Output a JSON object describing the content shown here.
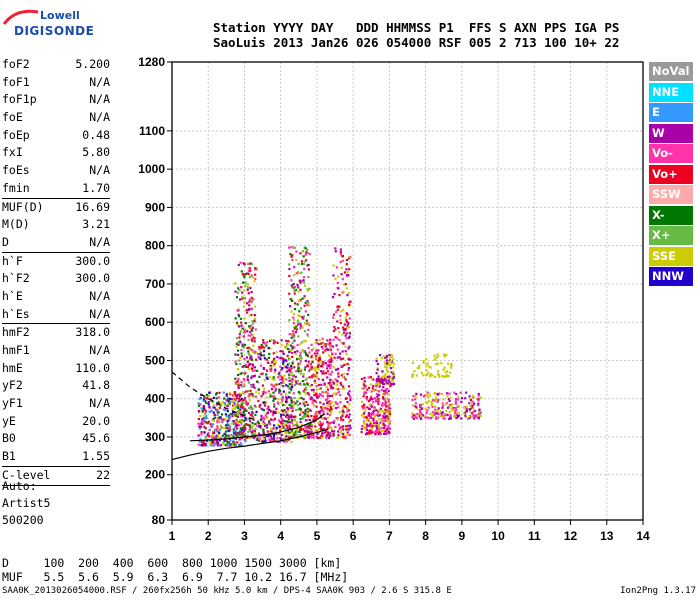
{
  "logo": {
    "brand": "Lowell",
    "product": "DIGISONDE"
  },
  "header": {
    "line1": "Station YYYY DAY   DDD HHMMSS P1  FFS S AXN PPS IGA PS",
    "line2": "SaoLuis 2013 Jan26 026 054000 RSF 005 2 713 100 10+ 22"
  },
  "params": [
    {
      "name": "foF2",
      "value": "5.200"
    },
    {
      "name": "foF1",
      "value": "N/A"
    },
    {
      "name": "foF1p",
      "value": "N/A"
    },
    {
      "name": "foE",
      "value": "N/A"
    },
    {
      "name": "foEp",
      "value": "0.48"
    },
    {
      "name": "fxI",
      "value": "5.80"
    },
    {
      "name": "foEs",
      "value": "N/A"
    },
    {
      "name": "fmin",
      "value": "1.70",
      "sep": true
    },
    {
      "name": "MUF(D)",
      "value": "16.69"
    },
    {
      "name": "M(D)",
      "value": "3.21"
    },
    {
      "name": "D",
      "value": "N/A",
      "sep": true
    },
    {
      "name": "h`F",
      "value": "300.0"
    },
    {
      "name": "h`F2",
      "value": "300.0"
    },
    {
      "name": "h`E",
      "value": "N/A"
    },
    {
      "name": "h`Es",
      "value": "N/A",
      "sep": true
    },
    {
      "name": "hmF2",
      "value": "318.0"
    },
    {
      "name": "hmF1",
      "value": "N/A"
    },
    {
      "name": "hmE",
      "value": "110.0"
    },
    {
      "name": "yF2",
      "value": "41.8"
    },
    {
      "name": "yF1",
      "value": "N/A"
    },
    {
      "name": "yE",
      "value": "20.0"
    },
    {
      "name": "B0",
      "value": "45.6"
    },
    {
      "name": "B1",
      "value": "1.55",
      "sep": true
    },
    {
      "name": "C-level",
      "value": "22",
      "sep": true
    }
  ],
  "auto": {
    "line1": "Auto:",
    "line2": "Artist5",
    "line3": "500200"
  },
  "legend": [
    {
      "label": "NoVal",
      "color": "#999999"
    },
    {
      "label": "NNE",
      "color": "#00e0ff"
    },
    {
      "label": "E",
      "color": "#3399ff"
    },
    {
      "label": "W",
      "color": "#aa00aa"
    },
    {
      "label": "Vo-",
      "color": "#ff33aa"
    },
    {
      "label": "Vo+",
      "color": "#ee0022"
    },
    {
      "label": "SSW",
      "color": "#ffaaaa"
    },
    {
      "label": "X-",
      "color": "#007700"
    },
    {
      "label": "X+",
      "color": "#66bb44"
    },
    {
      "label": "SSE",
      "color": "#cccc00"
    },
    {
      "label": "NNW",
      "color": "#2200cc"
    }
  ],
  "dmuf": {
    "line1": "D     100  200  400  600  800 1000 1500 3000 [km]",
    "line2": "MUF   5.5  5.6  5.9  6.3  6.9  7.7 10.2 16.7 [MHz]"
  },
  "footer": "SAA0K_2013026054000.RSF / 260fx256h 50 kHz 5.0 km / DPS-4 SAA0K 903 / 2.6 S 315.8 E",
  "version": "Ion2Png 1.3.17",
  "chart_data": {
    "type": "scatter",
    "xlim": [
      1,
      14
    ],
    "ylim": [
      80,
      1280
    ],
    "x_ticks": [
      1,
      2,
      3,
      4,
      5,
      6,
      7,
      8,
      9,
      10,
      11,
      12,
      13,
      14
    ],
    "y_ticks": [
      80,
      200,
      300,
      400,
      500,
      600,
      700,
      800,
      900,
      1000,
      1100,
      1280
    ],
    "grid": true,
    "clusters": [
      {
        "x": [
          1.7,
          3.0
        ],
        "y": [
          280,
          420
        ],
        "colors": [
          "#ee0022",
          "#aa00aa",
          "#ff33aa",
          "#2200cc",
          "#007700",
          "#cccc00",
          "#3399ff"
        ],
        "n": 420
      },
      {
        "x": [
          2.7,
          3.3
        ],
        "y": [
          300,
          760
        ],
        "colors": [
          "#ee0022",
          "#aa00aa",
          "#ff33aa",
          "#cccc00",
          "#007700",
          "#66bb44"
        ],
        "n": 380
      },
      {
        "x": [
          3.3,
          4.3
        ],
        "y": [
          290,
          560
        ],
        "colors": [
          "#ee0022",
          "#aa00aa",
          "#ff33aa",
          "#cccc00",
          "#2200cc",
          "#007700"
        ],
        "n": 420
      },
      {
        "x": [
          4.2,
          4.8
        ],
        "y": [
          300,
          800
        ],
        "colors": [
          "#ee0022",
          "#aa00aa",
          "#ff33aa",
          "#cccc00",
          "#007700",
          "#66bb44"
        ],
        "n": 380
      },
      {
        "x": [
          4.8,
          5.4
        ],
        "y": [
          300,
          560
        ],
        "colors": [
          "#ee0022",
          "#aa00aa",
          "#ff33aa",
          "#cccc00"
        ],
        "n": 300
      },
      {
        "x": [
          5.4,
          5.9
        ],
        "y": [
          300,
          800
        ],
        "colors": [
          "#ee0022",
          "#aa00aa",
          "#ff33aa",
          "#cccc00"
        ],
        "n": 240
      },
      {
        "x": [
          6.2,
          7.0
        ],
        "y": [
          310,
          460
        ],
        "colors": [
          "#ee0022",
          "#aa00aa",
          "#ff33aa",
          "#cccc00"
        ],
        "n": 300
      },
      {
        "x": [
          6.6,
          7.1
        ],
        "y": [
          440,
          520
        ],
        "colors": [
          "#cccc00",
          "#aa00aa"
        ],
        "n": 90
      },
      {
        "x": [
          7.6,
          9.5
        ],
        "y": [
          350,
          420
        ],
        "colors": [
          "#aa00aa",
          "#ff33aa",
          "#cccc00"
        ],
        "n": 240
      },
      {
        "x": [
          7.6,
          8.7
        ],
        "y": [
          460,
          520
        ],
        "colors": [
          "#cccc00"
        ],
        "n": 60
      }
    ],
    "curves": [
      {
        "style": "solid",
        "x": [
          1,
          1.5,
          2,
          2.5,
          3,
          3.5,
          4,
          4.5,
          5,
          5.3
        ],
        "y": [
          240,
          252,
          262,
          270,
          276,
          283,
          290,
          300,
          312,
          320
        ]
      },
      {
        "style": "solid",
        "x": [
          1.5,
          2,
          2.5,
          3,
          3.5,
          4,
          4.5,
          5,
          5.2
        ],
        "y": [
          290,
          292,
          295,
          300,
          305,
          313,
          325,
          345,
          360
        ]
      },
      {
        "style": "dashed",
        "x": [
          1,
          1.5,
          2,
          2.5,
          3,
          3.3
        ],
        "y": [
          470,
          430,
          400,
          375,
          355,
          345
        ]
      }
    ]
  }
}
